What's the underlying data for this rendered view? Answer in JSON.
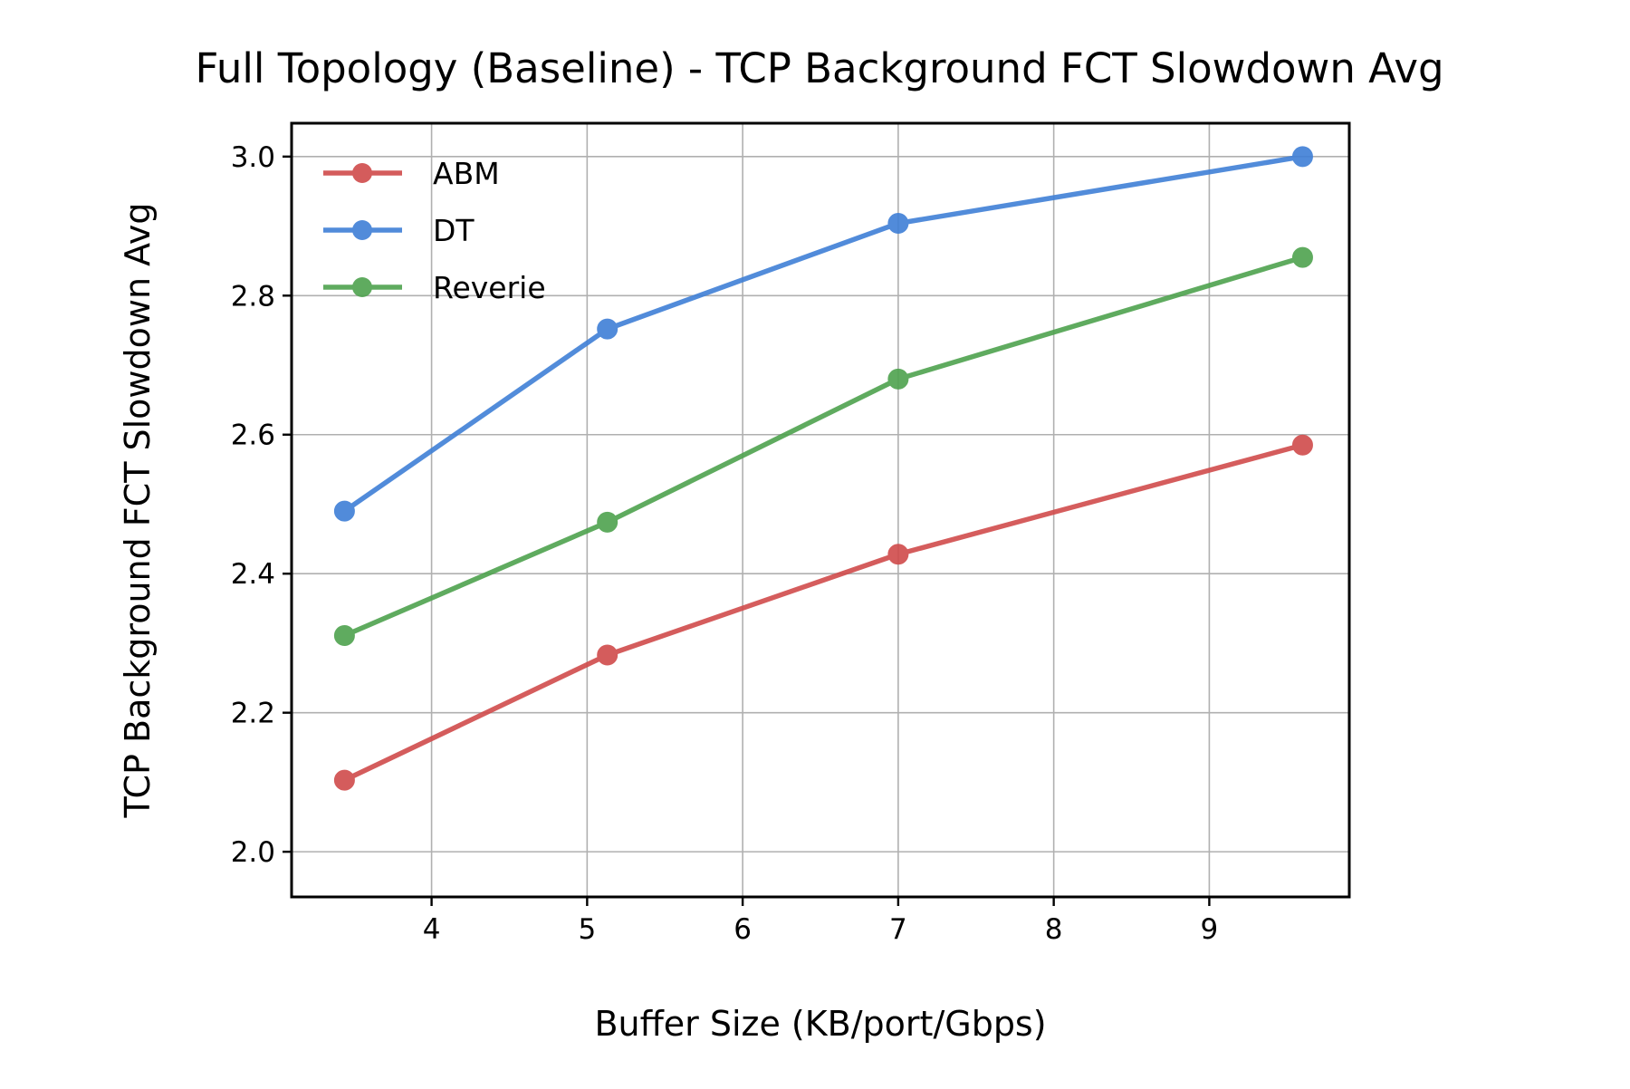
{
  "chart_data": {
    "type": "line",
    "title": "Full Topology (Baseline) - TCP Background FCT Slowdown Avg",
    "xlabel": "Buffer Size (KB/port/Gbps)",
    "ylabel": "TCP Background FCT Slowdown Avg",
    "xlim": [
      3.1,
      9.9
    ],
    "ylim": [
      1.935,
      3.048
    ],
    "xticks": [
      4,
      5,
      6,
      7,
      8,
      9
    ],
    "yticks": [
      2.0,
      2.2,
      2.4,
      2.6,
      2.8,
      3.0
    ],
    "xtick_labels": [
      "4",
      "5",
      "6",
      "7",
      "8",
      "9"
    ],
    "ytick_labels": [
      "2.0",
      "2.2",
      "2.4",
      "2.6",
      "2.8",
      "3.0"
    ],
    "grid": true,
    "legend_position": "upper-left",
    "x": [
      3.44,
      5.13,
      7.0,
      9.6
    ],
    "series": [
      {
        "name": "ABM",
        "color": "#d04b4b",
        "values": [
          2.103,
          2.283,
          2.428,
          2.585
        ]
      },
      {
        "name": "DT",
        "color": "#3f7fd6",
        "values": [
          2.49,
          2.752,
          2.904,
          3.0
        ]
      },
      {
        "name": "Reverie",
        "color": "#4ea24e",
        "values": [
          2.311,
          2.474,
          2.68,
          2.855
        ]
      }
    ]
  }
}
